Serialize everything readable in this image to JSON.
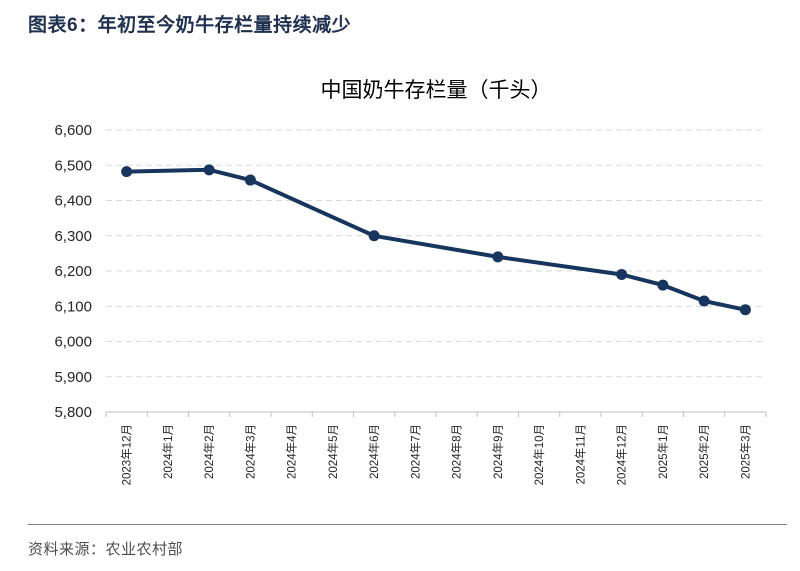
{
  "figure": {
    "header": "图表6：年初至今奶牛存栏量持续减少",
    "source": "资料来源：农业农村部"
  },
  "chart_data": {
    "type": "line",
    "title": "中国奶牛存栏量（千头）",
    "categories": [
      "2023年12月",
      "2024年1月",
      "2024年2月",
      "2024年3月",
      "2024年4月",
      "2024年5月",
      "2024年6月",
      "2024年7月",
      "2024年8月",
      "2024年9月",
      "2024年10月",
      "2024年11月",
      "2024年12月",
      "2025年1月",
      "2025年2月",
      "2025年3月"
    ],
    "series": [
      {
        "name": "中国奶牛存栏量",
        "values": [
          6482,
          null,
          6487,
          6458,
          null,
          null,
          6300,
          null,
          null,
          6240,
          null,
          null,
          6190,
          6160,
          6115,
          6090
        ]
      }
    ],
    "ylim": [
      5800,
      6600
    ],
    "ytick_step": 100,
    "xlabel": "",
    "ylabel": "",
    "legend": "none",
    "grid": "horizontal-dashed",
    "marker": "circle"
  },
  "colors": {
    "line": "#17365D",
    "header_text": "#1F3050",
    "gridline": "#D9D9D9",
    "axis": "#BFBFBF",
    "tick_label": "#262626",
    "source_text": "#4D4D4D"
  }
}
